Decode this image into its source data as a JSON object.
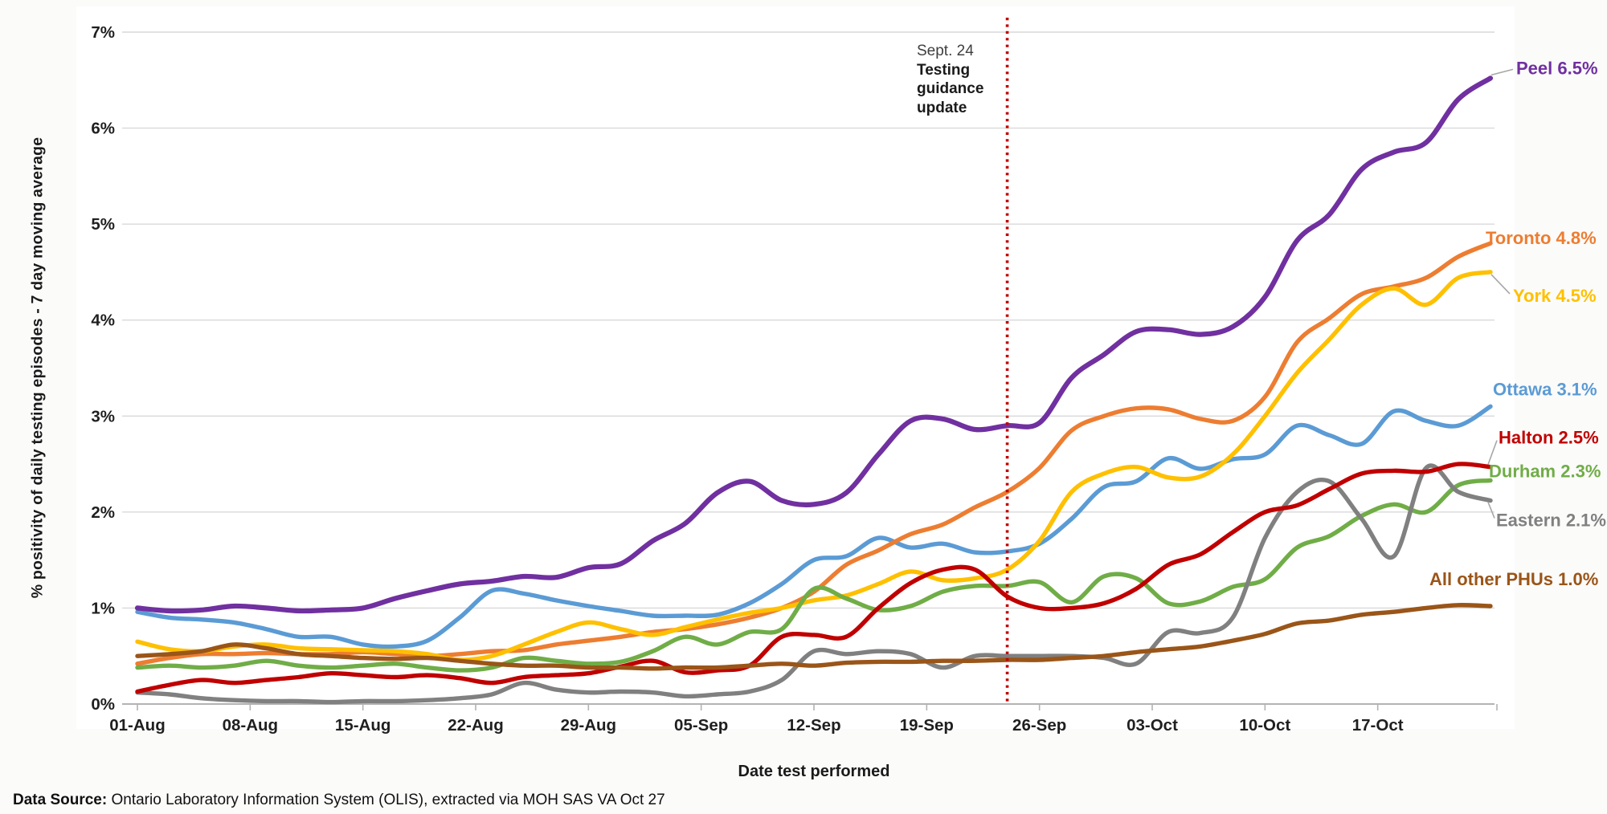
{
  "annotation": {
    "lines": [
      "Sept. 24",
      "Testing",
      "guidance",
      "update"
    ],
    "line_color": "#C00000"
  },
  "footer": {
    "label": "Data Source:",
    "text": " Ontario Laboratory Information System (OLIS), extracted via MOH SAS VA Oct 27"
  },
  "chart_data": {
    "type": "line",
    "title": "",
    "x_label": "Date test performed",
    "y_label": "% positivity of daily testing episodes - 7 day moving average",
    "ylim": [
      0,
      7
    ],
    "y_tick_labels": [
      "0%",
      "1%",
      "2%",
      "3%",
      "4%",
      "5%",
      "6%",
      "7%"
    ],
    "x_tick_labels": [
      "01-Aug",
      "08-Aug",
      "15-Aug",
      "22-Aug",
      "29-Aug",
      "05-Sep",
      "12-Sep",
      "19-Sep",
      "26-Sep",
      "03-Oct",
      "10-Oct",
      "17-Oct"
    ],
    "x_tick_interval_days": 7,
    "x_start": "01-Aug",
    "x_end": "24-Oct",
    "sample_interval_days": 2,
    "grid": true,
    "legend_position": "right-end-labels",
    "annotation_day": 54,
    "annotation_text": "Sept. 24 Testing guidance update",
    "series": [
      {
        "name": "Peel",
        "label": "Peel 6.5%",
        "final_value": "6.5%",
        "color": "#7030A0",
        "values": [
          1.0,
          0.97,
          0.98,
          1.02,
          1.0,
          0.97,
          0.98,
          1.0,
          1.1,
          1.18,
          1.25,
          1.28,
          1.33,
          1.32,
          1.42,
          1.46,
          1.7,
          1.88,
          2.2,
          2.32,
          2.12,
          2.08,
          2.2,
          2.6,
          2.95,
          2.97,
          2.86,
          2.9,
          2.93,
          3.4,
          3.64,
          3.88,
          3.9,
          3.85,
          3.93,
          4.24,
          4.83,
          5.1,
          5.57,
          5.75,
          5.85,
          6.3,
          6.52
        ]
      },
      {
        "name": "Toronto",
        "label": "Toronto 4.8%",
        "final_value": "4.8%",
        "color": "#ED7D31",
        "values": [
          0.42,
          0.48,
          0.52,
          0.52,
          0.53,
          0.52,
          0.52,
          0.54,
          0.52,
          0.5,
          0.52,
          0.55,
          0.56,
          0.62,
          0.66,
          0.7,
          0.75,
          0.78,
          0.83,
          0.9,
          1.0,
          1.17,
          1.45,
          1.6,
          1.77,
          1.87,
          2.05,
          2.21,
          2.46,
          2.85,
          3.0,
          3.08,
          3.07,
          2.97,
          2.95,
          3.2,
          3.77,
          4.02,
          4.27,
          4.35,
          4.44,
          4.66,
          4.8
        ]
      },
      {
        "name": "York",
        "label": "York 4.5%",
        "final_value": "4.5%",
        "color": "#FFC000",
        "values": [
          0.65,
          0.57,
          0.55,
          0.6,
          0.62,
          0.58,
          0.57,
          0.56,
          0.55,
          0.52,
          0.46,
          0.5,
          0.62,
          0.75,
          0.85,
          0.78,
          0.72,
          0.8,
          0.88,
          0.95,
          1.0,
          1.08,
          1.13,
          1.25,
          1.38,
          1.29,
          1.31,
          1.4,
          1.7,
          2.21,
          2.4,
          2.47,
          2.36,
          2.37,
          2.6,
          3.0,
          3.45,
          3.8,
          4.16,
          4.33,
          4.16,
          4.44,
          4.5
        ]
      },
      {
        "name": "Ottawa",
        "label": "Ottawa 3.1%",
        "final_value": "3.1%",
        "color": "#5B9BD5",
        "values": [
          0.96,
          0.9,
          0.88,
          0.85,
          0.78,
          0.7,
          0.7,
          0.62,
          0.6,
          0.66,
          0.9,
          1.18,
          1.15,
          1.08,
          1.02,
          0.97,
          0.92,
          0.92,
          0.93,
          1.05,
          1.25,
          1.5,
          1.54,
          1.73,
          1.63,
          1.67,
          1.58,
          1.59,
          1.67,
          1.93,
          2.26,
          2.32,
          2.56,
          2.45,
          2.55,
          2.6,
          2.9,
          2.8,
          2.71,
          3.05,
          2.95,
          2.9,
          3.1
        ]
      },
      {
        "name": "Halton",
        "label": "Halton 2.5%",
        "final_value": "2.5%",
        "color": "#C00000",
        "values": [
          0.13,
          0.2,
          0.25,
          0.22,
          0.25,
          0.28,
          0.32,
          0.3,
          0.28,
          0.3,
          0.27,
          0.22,
          0.28,
          0.3,
          0.32,
          0.39,
          0.45,
          0.33,
          0.35,
          0.4,
          0.7,
          0.72,
          0.7,
          1.0,
          1.26,
          1.4,
          1.4,
          1.12,
          1.0,
          1.0,
          1.05,
          1.2,
          1.45,
          1.56,
          1.79,
          2.0,
          2.07,
          2.24,
          2.4,
          2.43,
          2.42,
          2.5,
          2.47
        ]
      },
      {
        "name": "Durham",
        "label": "Durham 2.3%",
        "final_value": "2.3%",
        "color": "#70AD47",
        "values": [
          0.38,
          0.4,
          0.38,
          0.4,
          0.45,
          0.4,
          0.38,
          0.4,
          0.42,
          0.38,
          0.35,
          0.38,
          0.48,
          0.45,
          0.42,
          0.44,
          0.55,
          0.7,
          0.62,
          0.75,
          0.78,
          1.2,
          1.1,
          0.98,
          1.02,
          1.17,
          1.23,
          1.23,
          1.27,
          1.06,
          1.33,
          1.31,
          1.05,
          1.07,
          1.22,
          1.3,
          1.63,
          1.75,
          1.96,
          2.08,
          2.0,
          2.28,
          2.33
        ]
      },
      {
        "name": "Eastern",
        "label": "Eastern 2.1%",
        "final_value": "2.1%",
        "color": "#808080",
        "values": [
          0.12,
          0.1,
          0.06,
          0.04,
          0.03,
          0.03,
          0.02,
          0.03,
          0.03,
          0.04,
          0.06,
          0.1,
          0.22,
          0.15,
          0.12,
          0.13,
          0.12,
          0.08,
          0.1,
          0.13,
          0.25,
          0.55,
          0.52,
          0.55,
          0.52,
          0.38,
          0.5,
          0.5,
          0.5,
          0.5,
          0.48,
          0.42,
          0.75,
          0.74,
          0.9,
          1.73,
          2.21,
          2.32,
          1.93,
          1.54,
          2.46,
          2.21,
          2.12
        ]
      },
      {
        "name": "All other PHUs",
        "label": "All other PHUs 1.0%",
        "final_value": "1.0%",
        "color": "#9A5518",
        "values": [
          0.5,
          0.52,
          0.55,
          0.62,
          0.58,
          0.52,
          0.5,
          0.48,
          0.47,
          0.48,
          0.45,
          0.42,
          0.4,
          0.4,
          0.38,
          0.38,
          0.37,
          0.38,
          0.38,
          0.4,
          0.42,
          0.4,
          0.43,
          0.44,
          0.44,
          0.45,
          0.45,
          0.46,
          0.46,
          0.48,
          0.5,
          0.54,
          0.57,
          0.6,
          0.66,
          0.73,
          0.84,
          0.87,
          0.93,
          0.96,
          1.0,
          1.03,
          1.02
        ]
      }
    ]
  }
}
